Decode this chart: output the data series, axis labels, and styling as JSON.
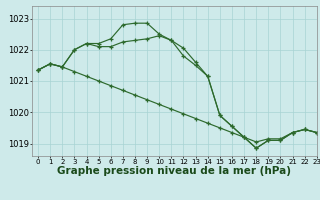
{
  "background_color": "#ceeaea",
  "grid_color": "#a8d4d4",
  "line_color": "#2d6a2d",
  "marker": "+",
  "xlabel": "Graphe pression niveau de la mer (hPa)",
  "xlabel_fontsize": 7.5,
  "tick_fontsize": 6,
  "ylim": [
    1018.6,
    1023.4
  ],
  "xlim": [
    -0.5,
    23
  ],
  "yticks": [
    1019,
    1020,
    1021,
    1022,
    1023
  ],
  "xticks": [
    0,
    1,
    2,
    3,
    4,
    5,
    6,
    7,
    8,
    9,
    10,
    11,
    12,
    13,
    14,
    15,
    16,
    17,
    18,
    19,
    20,
    21,
    22,
    23
  ],
  "line1_x": [
    0,
    1,
    2,
    3,
    4,
    5,
    6,
    7,
    8,
    9,
    10,
    11,
    12,
    13,
    14,
    15,
    16,
    17,
    18,
    19,
    20,
    21,
    22,
    23
  ],
  "line1_y": [
    1021.35,
    1021.55,
    1021.45,
    1021.3,
    1021.15,
    1021.0,
    1020.85,
    1020.7,
    1020.55,
    1020.4,
    1020.25,
    1020.1,
    1019.95,
    1019.8,
    1019.65,
    1019.5,
    1019.35,
    1019.2,
    1019.05,
    1019.15,
    1019.15,
    1019.35,
    1019.45,
    1019.35
  ],
  "line2_x": [
    0,
    1,
    2,
    3,
    4,
    5,
    6,
    7,
    8,
    9,
    10,
    11,
    12,
    13,
    14,
    15,
    16,
    17,
    18,
    19,
    20,
    21,
    22,
    23
  ],
  "line2_y": [
    1021.35,
    1021.55,
    1021.45,
    1022.0,
    1022.2,
    1022.2,
    1022.35,
    1022.8,
    1022.85,
    1022.85,
    1022.5,
    1022.3,
    1021.8,
    1021.5,
    1021.15,
    1019.9,
    1019.55,
    1019.2,
    1018.85,
    1019.1,
    1019.1,
    1019.35,
    1019.45,
    1019.35
  ],
  "line3_x": [
    0,
    1,
    2,
    3,
    4,
    5,
    6,
    7,
    8,
    9,
    10,
    11,
    12,
    13,
    14,
    15,
    16,
    17,
    18,
    19,
    20,
    21,
    22,
    23
  ],
  "line3_y": [
    1021.35,
    1021.55,
    1021.45,
    1022.0,
    1022.2,
    1022.1,
    1022.1,
    1022.25,
    1022.3,
    1022.35,
    1022.45,
    1022.3,
    1022.05,
    1021.6,
    1021.15,
    1019.9,
    1019.55,
    1019.2,
    1018.85,
    1019.1,
    1019.1,
    1019.35,
    1019.45,
    1019.35
  ]
}
